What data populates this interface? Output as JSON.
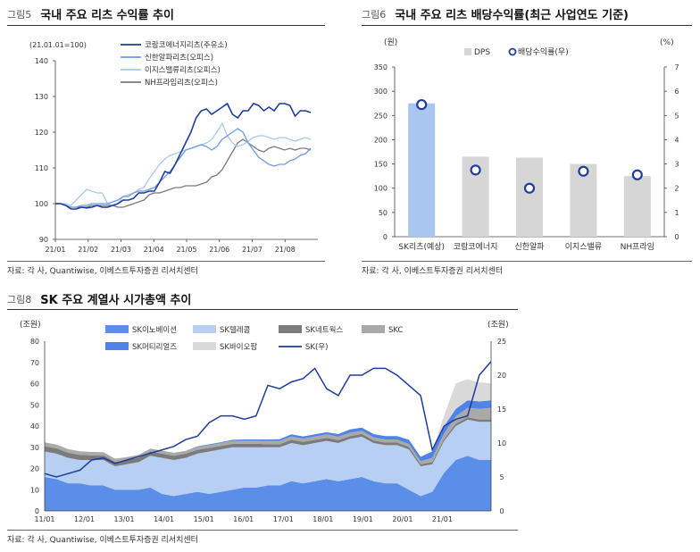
{
  "chart_data": [
    {
      "type": "line",
      "figure_label": "그림5",
      "title": "국내 주요 리츠 수익률 추이",
      "subtitle": "(21.01.01=100)",
      "source": "자료: 각 사, Quantiwise, 이베스트투자증권 리서치센터",
      "ylim": [
        90,
        140
      ],
      "yticks": [
        "90",
        "100",
        "110",
        "120",
        "130",
        "140"
      ],
      "x_ticks": [
        "21/01",
        "21/02",
        "21/03",
        "21/04",
        "21/05",
        "21/06",
        "21/07",
        "21/08"
      ],
      "series": [
        {
          "name": "코람코에너지리츠(주유소)",
          "color": "#1f3d99",
          "values": [
            100,
            100,
            99.5,
            98.5,
            98.5,
            99,
            98.8,
            99,
            99.5,
            99,
            99,
            99.5,
            100,
            101,
            101,
            101.5,
            103,
            103,
            103.5,
            103.5,
            106,
            109,
            108.5,
            111,
            114,
            117,
            120,
            124,
            126,
            126.5,
            125,
            126,
            127,
            128,
            125,
            124,
            126,
            126,
            128,
            127.5,
            126,
            127,
            126,
            128,
            128,
            127.5,
            124.5,
            126,
            126,
            125.5
          ]
        },
        {
          "name": "신한알파리츠(오피스)",
          "color": "#6d9be0",
          "values": [
            100,
            100,
            99.5,
            99,
            99,
            99.5,
            99.5,
            100,
            100,
            100,
            100,
            100.5,
            101,
            102,
            102,
            103,
            103.5,
            103.5,
            104,
            104.5,
            106,
            107.5,
            109,
            111,
            113,
            115,
            115.5,
            116,
            116.5,
            116,
            115,
            116,
            118,
            119,
            120,
            121,
            120,
            117,
            115,
            113,
            112,
            111,
            110.5,
            111,
            111,
            112,
            112.5,
            113.5,
            114,
            115.5
          ]
        },
        {
          "name": "이지스밸류리츠(오피스)",
          "color": "#aac8ec",
          "values": [
            100,
            100,
            100,
            99.5,
            101,
            102.5,
            104,
            103.5,
            103,
            103,
            100,
            99.5,
            100,
            102,
            102.5,
            103,
            104,
            104.5,
            107,
            109,
            111,
            112.5,
            113.5,
            114,
            114.5,
            115,
            115.5,
            116,
            116.5,
            117,
            118,
            120,
            122.5,
            119,
            117,
            116,
            116.5,
            117.5,
            118.5,
            119,
            119,
            118.5,
            118,
            118.5,
            118.5,
            118,
            117.5,
            118,
            118.5,
            118
          ]
        },
        {
          "name": "NH프라임리츠(오피스)",
          "color": "#7a7a7a",
          "values": [
            100,
            100,
            99.5,
            99,
            99,
            99,
            99,
            99.5,
            99.5,
            99.5,
            99.5,
            99.5,
            99,
            99,
            99.5,
            100,
            100.5,
            101,
            102.5,
            103,
            103,
            103.5,
            104,
            104.5,
            104.5,
            105,
            105,
            105,
            105.5,
            106,
            107.5,
            108,
            109.5,
            112,
            114.5,
            117,
            118,
            117,
            116,
            115,
            114.5,
            115.5,
            116,
            115.5,
            115,
            115.5,
            115,
            115.5,
            115.5,
            115
          ]
        }
      ]
    },
    {
      "type": "bar",
      "figure_label": "그림6",
      "title": "국내 주요 리츠 배당수익률(최근 사업연도 기준)",
      "source": "자료: 각 사, 이베스트투자증권 리서치센터",
      "ylabel_left": "(원)",
      "ylabel_right": "(%)",
      "ylim_left": [
        0,
        350
      ],
      "ylim_right": [
        0,
        7
      ],
      "yticks_left": [
        "0",
        "50",
        "100",
        "150",
        "200",
        "250",
        "300",
        "350"
      ],
      "yticks_right": [
        "0",
        "1",
        "2",
        "3",
        "4",
        "5",
        "6",
        "7"
      ],
      "categories": [
        "SK리츠(예상)",
        "코람코에너지",
        "신한알파",
        "이지스밸류",
        "NH프라임"
      ],
      "series": [
        {
          "name": "DPS",
          "kind": "bar",
          "values": [
            275,
            165,
            163,
            150,
            125
          ],
          "color": "#d6d6d6",
          "highlight_color": "#a8c6f0"
        },
        {
          "name": "배당수익률(우)",
          "kind": "marker",
          "values": [
            5.45,
            2.75,
            2.0,
            2.7,
            2.55
          ],
          "color": "#1f3d99"
        }
      ]
    },
    {
      "type": "area",
      "figure_label": "그림8",
      "title": "SK 주요 계열사 시가총액 추이",
      "source": "자료: 각 사, Quantiwise, 이베스트투자증권 리서치센터",
      "ylabel_left": "(조원)",
      "ylabel_right": "(조원)",
      "ylim_left": [
        0,
        80
      ],
      "ylim_right": [
        0,
        25
      ],
      "yticks_left": [
        "0",
        "10",
        "20",
        "30",
        "40",
        "50",
        "60",
        "70",
        "80"
      ],
      "yticks_right": [
        "0",
        "5",
        "10",
        "15",
        "20",
        "25"
      ],
      "x_ticks": [
        "11/01",
        "12/01",
        "13/01",
        "14/01",
        "15/01",
        "16/01",
        "17/01",
        "18/01",
        "19/01",
        "20/01",
        "21/01"
      ],
      "series": [
        {
          "name": "SK이노베이션",
          "kind": "area",
          "color": "#5b8ee8",
          "values": [
            16,
            15,
            13,
            13,
            12,
            12,
            10,
            10,
            10,
            11,
            8,
            7,
            8,
            9,
            8,
            9,
            10,
            11,
            11,
            12,
            12,
            14,
            13,
            14,
            15,
            14,
            15,
            16,
            14,
            13,
            13,
            10,
            7,
            9,
            18,
            24,
            26,
            24,
            24
          ]
        },
        {
          "name": "SK텔레콤",
          "kind": "area",
          "color": "#b7cff3",
          "values": [
            12,
            12,
            12,
            11,
            12,
            12,
            11,
            12,
            13,
            15,
            17,
            17,
            17,
            18,
            20,
            20,
            20,
            19,
            19,
            18,
            18,
            18,
            18,
            18,
            18,
            18,
            19,
            19,
            18,
            18,
            18,
            19,
            14,
            13,
            15,
            16,
            17,
            18,
            18
          ]
        },
        {
          "name": "SK네트웍스",
          "kind": "area",
          "color": "#7b7b7b",
          "values": [
            2.5,
            2.5,
            2.4,
            2.4,
            2.2,
            2.2,
            2.1,
            2.0,
            2.0,
            2.0,
            2.0,
            2.0,
            2.0,
            1.8,
            1.7,
            1.6,
            1.6,
            1.6,
            1.6,
            1.5,
            1.5,
            1.5,
            1.5,
            1.5,
            1.4,
            1.4,
            1.3,
            1.3,
            1.2,
            1.2,
            1.2,
            1.2,
            1.0,
            1.0,
            1.0,
            1.1,
            1.1,
            1.1,
            1.1
          ]
        },
        {
          "name": "SKC",
          "kind": "area",
          "color": "#a9a9a9",
          "values": [
            1.8,
            1.8,
            1.7,
            1.7,
            1.6,
            1.5,
            1.5,
            1.4,
            1.4,
            1.4,
            1.4,
            1.4,
            1.3,
            1.3,
            1.4,
            1.4,
            1.4,
            1.5,
            1.5,
            1.5,
            1.5,
            1.6,
            1.6,
            1.6,
            1.7,
            1.6,
            1.6,
            1.5,
            1.5,
            1.5,
            1.4,
            1.4,
            1.5,
            2.0,
            2.5,
            3.5,
            4.5,
            5.0,
            5.5
          ]
        },
        {
          "name": "SK머티리얼즈",
          "kind": "area",
          "color": "#4f83e6",
          "values": [
            0,
            0,
            0,
            0,
            0,
            0,
            0,
            0,
            0,
            0,
            0,
            0,
            0,
            0.3,
            0.3,
            0.4,
            0.5,
            0.6,
            0.6,
            0.7,
            0.8,
            1.0,
            1.0,
            1.0,
            1.0,
            1.2,
            1.5,
            1.5,
            1.5,
            1.6,
            1.7,
            2.0,
            2.0,
            3.0,
            3.5,
            3.5,
            3.5,
            3.5,
            3.5
          ]
        },
        {
          "name": "SK바이오팜",
          "kind": "area",
          "color": "#d9d9d9",
          "values": [
            0,
            0,
            0,
            0,
            0,
            0,
            0,
            0,
            0,
            0,
            0,
            0,
            0,
            0,
            0,
            0,
            0,
            0,
            0,
            0,
            0,
            0,
            0,
            0,
            0,
            0,
            0,
            0,
            0,
            0,
            0,
            0,
            0,
            0,
            5,
            12,
            10,
            9,
            8
          ]
        },
        {
          "name": "SK(우)",
          "kind": "line",
          "axis": "right",
          "color": "#1f3d99",
          "values": [
            5.5,
            5.0,
            5.5,
            6.0,
            7.5,
            7.8,
            7.0,
            7.5,
            8.0,
            8.5,
            9.0,
            9.5,
            10.5,
            11,
            13,
            14,
            14,
            13.5,
            14,
            18.5,
            18,
            19,
            19.5,
            21,
            18,
            17,
            20,
            20,
            21,
            21,
            20,
            18.5,
            17,
            9,
            12.5,
            13.5,
            14,
            20,
            22
          ]
        }
      ]
    }
  ]
}
